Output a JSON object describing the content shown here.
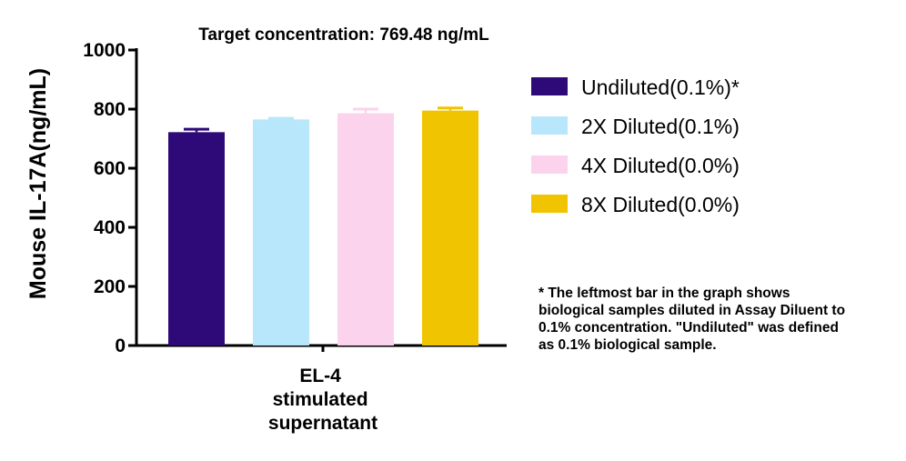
{
  "chart_data": {
    "type": "bar",
    "title": "Target concentration: 769.48 ng/mL",
    "ylabel": "Mouse IL-17A(ng/mL)",
    "xlabel": "",
    "ylim": [
      0,
      1000
    ],
    "yticks": [
      0,
      200,
      400,
      600,
      800,
      1000
    ],
    "category_lines": [
      "EL-4",
      "stimulated",
      "supernatant"
    ],
    "series": [
      {
        "name": "Undiluted(0.1%)*",
        "value": 722,
        "error": 10,
        "color": "#2d0a78"
      },
      {
        "name": "2X Diluted(0.1%)",
        "value": 765,
        "error": 4,
        "color": "#b8e6fa"
      },
      {
        "name": "4X Diluted(0.0%)",
        "value": 786,
        "error": 14,
        "color": "#fcd3ec"
      },
      {
        "name": "8X Diluted(0.0%)",
        "value": 795,
        "error": 9,
        "color": "#f0c400"
      }
    ],
    "grid": false,
    "legend_position": "right",
    "footnote_lines": [
      "* The leftmost bar in the graph shows",
      "biological samples diluted in Assay Diluent to",
      "0.1% concentration. \"Undiluted\" was defined",
      "as 0.1% biological sample."
    ]
  }
}
